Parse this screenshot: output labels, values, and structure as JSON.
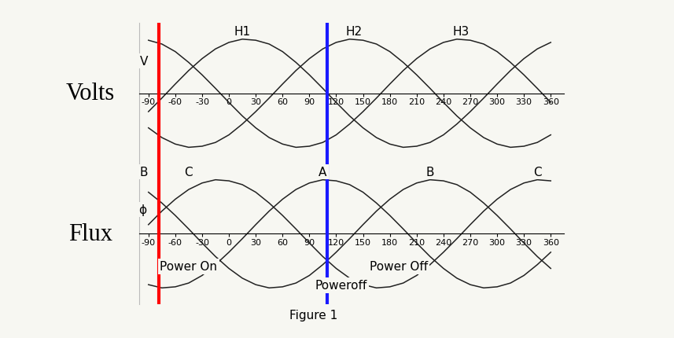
{
  "chart_data": [
    {
      "type": "line",
      "ylabel": "Volts",
      "x": [
        -90,
        -75,
        -60,
        -45,
        -30,
        -15,
        0,
        15,
        30,
        45,
        60,
        75,
        90,
        105,
        120,
        135,
        150,
        165,
        180,
        195,
        210,
        225,
        240,
        255,
        270,
        285,
        300,
        315,
        330,
        345,
        360
      ],
      "xlim": [
        -100,
        375
      ],
      "ylim": [
        -1.3,
        1.3
      ],
      "xticks": [
        -90,
        -60,
        -30,
        0,
        30,
        60,
        90,
        120,
        150,
        180,
        210,
        240,
        270,
        300,
        330,
        360
      ],
      "tick_labels": "x",
      "series": [
        {
          "color": "#222222",
          "values": [
            -0.34,
            -0.09,
            0.17,
            0.42,
            0.64,
            0.82,
            0.94,
            1.0,
            0.98,
            0.91,
            0.77,
            0.57,
            0.34,
            0.09,
            -0.17,
            -0.42,
            -0.64,
            -0.82,
            -0.94,
            -1.0,
            -0.98,
            -0.91,
            -0.77,
            -0.57,
            -0.34,
            -0.09,
            0.17,
            0.42,
            0.64,
            0.82,
            0.94
          ]
        },
        {
          "color": "#222222",
          "values": [
            -0.64,
            -0.82,
            -0.94,
            -1.0,
            -0.98,
            -0.91,
            -0.77,
            -0.57,
            -0.34,
            -0.09,
            0.17,
            0.42,
            0.64,
            0.82,
            0.94,
            1.0,
            0.98,
            0.91,
            0.77,
            0.57,
            0.34,
            0.09,
            -0.17,
            -0.42,
            -0.64,
            -0.82,
            -0.94,
            -1.0,
            -0.98,
            -0.91,
            -0.77
          ]
        },
        {
          "color": "#222222",
          "values": [
            0.98,
            0.91,
            0.77,
            0.57,
            0.34,
            0.09,
            -0.17,
            -0.42,
            -0.64,
            -0.82,
            -0.94,
            -1.0,
            -0.98,
            -0.91,
            -0.77,
            -0.57,
            -0.34,
            -0.09,
            0.17,
            0.42,
            0.64,
            0.82,
            0.94,
            1.0,
            0.98,
            0.91,
            0.77,
            0.57,
            0.34,
            0.09,
            -0.17
          ]
        }
      ],
      "annotations": [
        {
          "text": "H1",
          "x": 15,
          "y": 1.15
        },
        {
          "text": "H2",
          "x": 140,
          "y": 1.15
        },
        {
          "text": "H3",
          "x": 260,
          "y": 1.15
        },
        {
          "text": "V",
          "x": -95,
          "y": 0.6
        }
      ],
      "vlines": [
        {
          "x": -78,
          "color": "#ff0000"
        },
        {
          "x": 110,
          "color": "#1a1aff"
        }
      ]
    },
    {
      "type": "line",
      "ylabel": "Flux",
      "x": [
        -90,
        -75,
        -60,
        -45,
        -30,
        -15,
        0,
        15,
        30,
        45,
        60,
        75,
        90,
        105,
        120,
        135,
        150,
        165,
        180,
        195,
        210,
        225,
        240,
        255,
        270,
        285,
        300,
        315,
        330,
        345,
        360
      ],
      "xlim": [
        -100,
        375
      ],
      "ylim": [
        -1.3,
        1.3
      ],
      "xticks": [
        -90,
        -60,
        -30,
        0,
        30,
        60,
        90,
        120,
        150,
        180,
        210,
        240,
        270,
        300,
        330,
        360
      ],
      "tick_labels": "x",
      "series": [
        {
          "color": "#222222",
          "values": [
            -0.94,
            -1.0,
            -0.98,
            -0.91,
            -0.77,
            -0.57,
            -0.34,
            -0.09,
            0.17,
            0.42,
            0.64,
            0.82,
            0.94,
            1.0,
            0.98,
            0.91,
            0.77,
            0.57,
            0.34,
            0.09,
            -0.17,
            -0.42,
            -0.64,
            -0.82,
            -0.94,
            -1.0,
            -0.98,
            -0.91,
            -0.77,
            -0.57,
            -0.34
          ]
        },
        {
          "color": "#222222",
          "values": [
            0.77,
            0.57,
            0.34,
            0.09,
            -0.17,
            -0.42,
            -0.64,
            -0.82,
            -0.94,
            -1.0,
            -0.98,
            -0.91,
            -0.77,
            -0.57,
            -0.34,
            -0.09,
            0.17,
            0.42,
            0.64,
            0.82,
            0.94,
            1.0,
            0.98,
            0.91,
            0.77,
            0.57,
            0.34,
            0.09,
            -0.17,
            -0.42,
            -0.64
          ]
        },
        {
          "color": "#222222",
          "values": [
            0.17,
            0.42,
            0.64,
            0.82,
            0.94,
            1.0,
            0.98,
            0.91,
            0.77,
            0.57,
            0.34,
            0.09,
            -0.17,
            -0.42,
            -0.64,
            -0.82,
            -0.94,
            -1.0,
            -0.98,
            -0.91,
            -0.77,
            -0.57,
            -0.34,
            -0.09,
            0.17,
            0.42,
            0.64,
            0.82,
            0.94,
            1.0,
            0.98
          ]
        }
      ],
      "annotations": [
        {
          "text": "B",
          "x": -95,
          "y": 1.15
        },
        {
          "text": "C",
          "x": -45,
          "y": 1.15
        },
        {
          "text": "A",
          "x": 105,
          "y": 1.15
        },
        {
          "text": "B",
          "x": 225,
          "y": 1.15
        },
        {
          "text": "C",
          "x": 345,
          "y": 1.15
        },
        {
          "text": "ϕ",
          "x": -97,
          "y": 0.45
        },
        {
          "text": "Power On",
          "x": -45,
          "y": -0.6
        },
        {
          "text": "Power Off",
          "x": 190,
          "y": -0.6
        },
        {
          "text": "Poweroff",
          "x": 125,
          "y": -0.95
        },
        {
          "text": "Figure 1",
          "x": 95,
          "y": -1.5
        }
      ],
      "vlines": [
        {
          "x": -78,
          "color": "#ff0000"
        },
        {
          "x": 110,
          "color": "#1a1aff"
        }
      ]
    }
  ]
}
